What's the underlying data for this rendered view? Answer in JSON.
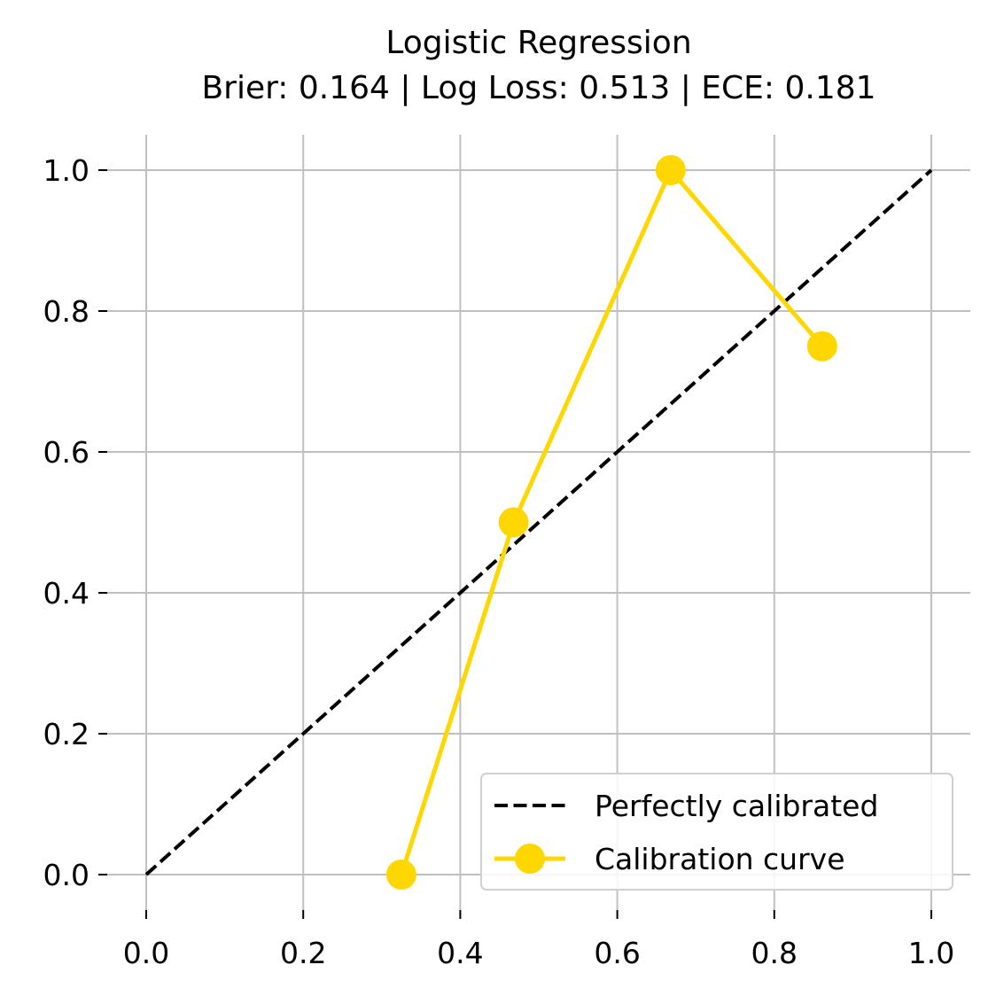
{
  "chart_data": {
    "type": "line",
    "title": "Logistic Regression",
    "subtitle": "Brier: 0.164 | Log Loss: 0.513 | ECE: 0.181",
    "xlabel": "",
    "ylabel": "",
    "xlim": [
      -0.05,
      1.05
    ],
    "ylim": [
      -0.05,
      1.05
    ],
    "grid": true,
    "legend_position": "bottom-right",
    "xticks": [
      {
        "value": 0.0,
        "label": "0.0"
      },
      {
        "value": 0.2,
        "label": "0.2"
      },
      {
        "value": 0.4,
        "label": "0.4"
      },
      {
        "value": 0.6,
        "label": "0.6"
      },
      {
        "value": 0.8,
        "label": "0.8"
      },
      {
        "value": 1.0,
        "label": "1.0"
      }
    ],
    "yticks": [
      {
        "value": 0.0,
        "label": "0.0"
      },
      {
        "value": 0.2,
        "label": "0.2"
      },
      {
        "value": 0.4,
        "label": "0.4"
      },
      {
        "value": 0.6,
        "label": "0.6"
      },
      {
        "value": 0.8,
        "label": "0.8"
      },
      {
        "value": 1.0,
        "label": "1.0"
      }
    ],
    "series": [
      {
        "name": "Perfectly calibrated",
        "style": "dashed",
        "color": "#000000",
        "markers": false,
        "x": [
          0.0,
          1.0
        ],
        "y": [
          0.0,
          1.0
        ]
      },
      {
        "name": "Calibration curve",
        "style": "solid",
        "color": "#FFD700",
        "markers": true,
        "x": [
          0.325,
          0.468,
          0.668,
          0.861
        ],
        "y": [
          0.0,
          0.5,
          1.0,
          0.75
        ]
      }
    ]
  }
}
